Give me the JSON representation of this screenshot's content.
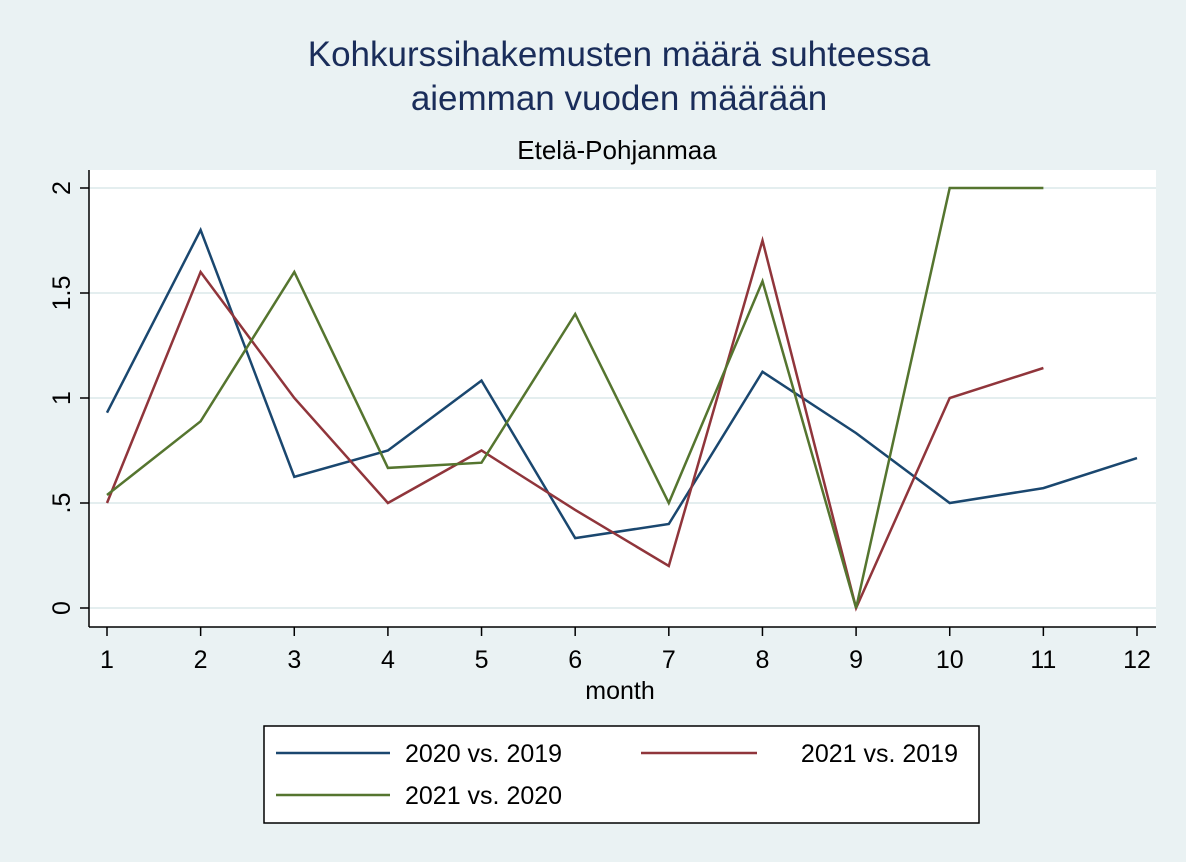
{
  "chart_data": {
    "type": "line",
    "title_line1": "Kohkurssihakemusten määrä suhteessa",
    "title_line2": "aiemman vuoden määrään",
    "subtitle": "Etelä-Pohjanmaa",
    "xlabel": "month",
    "ylabel": "",
    "xlim": [
      1,
      12
    ],
    "ylim": [
      0,
      2
    ],
    "x_ticks": [
      "1",
      "2",
      "3",
      "4",
      "5",
      "6",
      "7",
      "8",
      "9",
      "10",
      "11",
      "12"
    ],
    "y_ticks": [
      "0",
      ".5",
      "1",
      "1.5",
      "2"
    ],
    "y_tick_values": [
      0,
      0.5,
      1,
      1.5,
      2
    ],
    "grid": true,
    "legend_position": "bottom",
    "series": [
      {
        "name": "2020 vs. 2019",
        "color": "#1a476f",
        "x": [
          1,
          2,
          3,
          4,
          5,
          6,
          7,
          8,
          9,
          10,
          11,
          12
        ],
        "values": [
          0.93,
          1.8,
          0.625,
          0.75,
          1.083,
          0.333,
          0.4,
          1.125,
          0.833,
          0.5,
          0.571,
          0.714
        ]
      },
      {
        "name": "2021 vs. 2019",
        "color": "#90353b",
        "x": [
          1,
          2,
          3,
          4,
          5,
          6,
          7,
          8,
          9,
          10,
          11
        ],
        "values": [
          0.5,
          1.6,
          1.0,
          0.5,
          0.75,
          0.467,
          0.2,
          1.75,
          0.0,
          1.0,
          1.143
        ]
      },
      {
        "name": "2021 vs. 2020",
        "color": "#55752f",
        "x": [
          1,
          2,
          3,
          4,
          5,
          6,
          7,
          8,
          9,
          10,
          11
        ],
        "values": [
          0.538,
          0.889,
          1.6,
          0.667,
          0.692,
          1.4,
          0.5,
          1.556,
          0.0,
          2.0,
          2.0
        ]
      }
    ]
  }
}
